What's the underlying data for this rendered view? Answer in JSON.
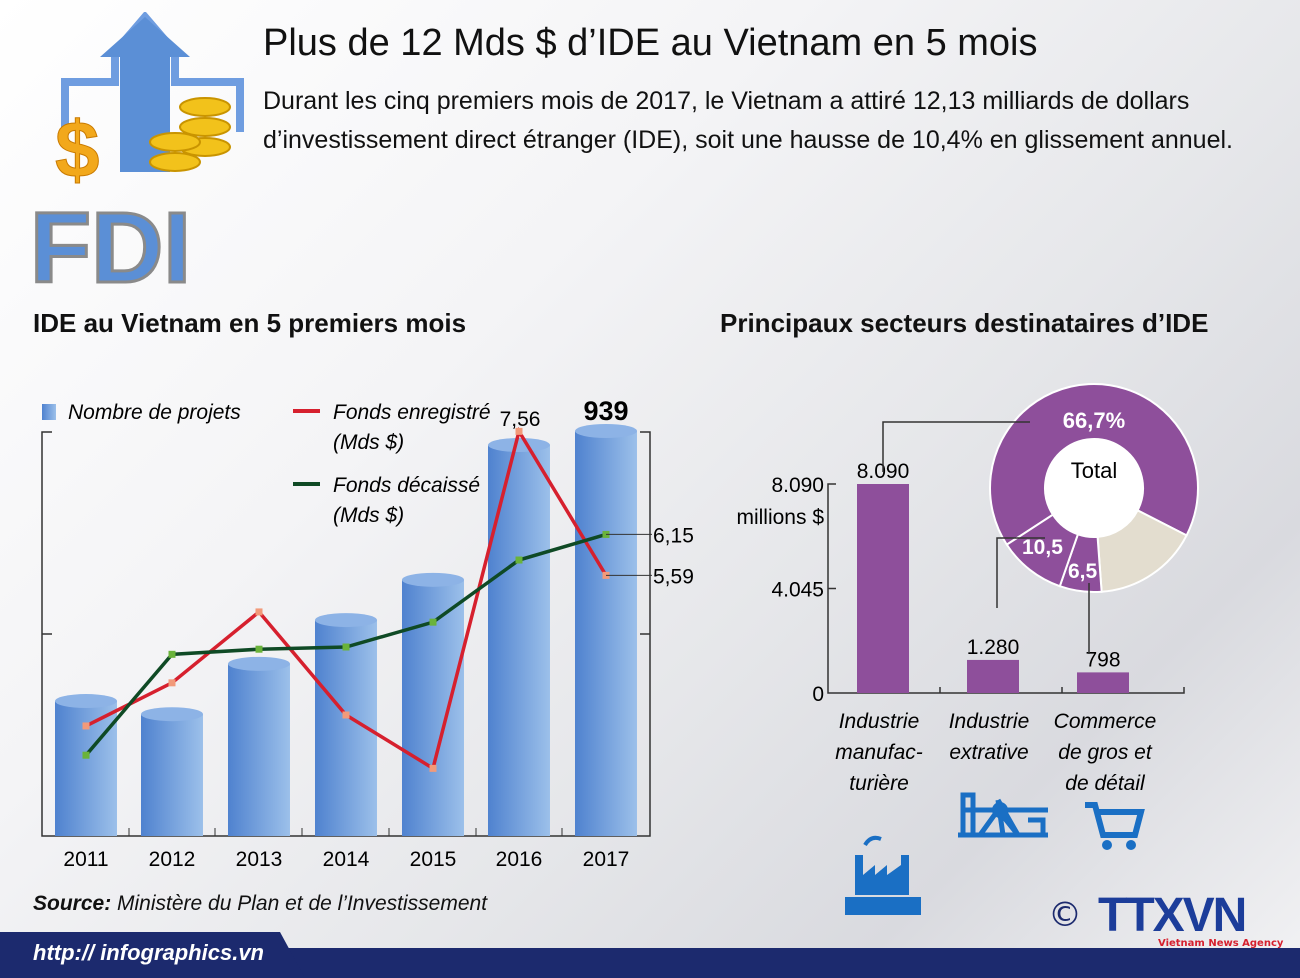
{
  "header": {
    "title": "Plus de 12 Mds $ d’IDE au Vietnam en 5 mois",
    "subtitle": "Durant les cinq premiers mois de 2017, le Vietnam a attiré 12,13 milliards de dollars d’investissement direct étranger (IDE), soit une hausse de 10,4% en glissement annuel.",
    "logo_text": "FDI"
  },
  "colors": {
    "bars_left": "#5b8fd6",
    "red_line": "#d6202e",
    "green_line": "#0f4a25",
    "purple": "#8e4f9b",
    "beige": "#e3ddcf",
    "navy": "#1c2a6e",
    "icon_blue": "#1a6fc4"
  },
  "chart_data": [
    {
      "type": "bar+line",
      "title": "IDE au Vietnam en 5 premiers mois",
      "categories": [
        "2011",
        "2012",
        "2013",
        "2014",
        "2015",
        "2016",
        "2017"
      ],
      "series": [
        {
          "name": "Nombre de projets",
          "kind": "bar",
          "values": [
            322,
            292,
            407,
            507,
            599,
            907,
            939
          ]
        },
        {
          "name": "Fonds enregistré (Mds $)",
          "kind": "line",
          "values": [
            3.53,
            4.12,
            5.09,
            3.68,
            2.95,
            7.56,
            5.59
          ]
        },
        {
          "name": "Fonds décaissé (Mds $)",
          "kind": "line",
          "values": [
            3.13,
            4.51,
            4.58,
            4.61,
            4.95,
            5.8,
            6.15
          ]
        }
      ],
      "data_labels": {
        "bar_2017": "939",
        "red_2016": "7,56",
        "red_2017": "5,59",
        "green_2017": "6,15"
      },
      "legend": {
        "bars": "Nombre de projets",
        "red_line_1": "Fonds enregistré",
        "red_line_2": "(Mds $)",
        "green_line_1": "Fonds décaissé",
        "green_line_2": "(Mds $)",
        "placement": "top"
      }
    },
    {
      "type": "bar",
      "title": "Principaux secteurs destinataires d’IDE",
      "categories": [
        [
          "Industrie",
          "manufac-",
          "turière"
        ],
        [
          "Industrie",
          "extrative"
        ],
        [
          "Commerce",
          "de gros et",
          "de détail"
        ]
      ],
      "values": [
        8090,
        1280,
        798
      ],
      "value_labels": [
        "8.090",
        "1.280",
        "798"
      ],
      "yticks": [
        "0",
        "4.045",
        "8.090"
      ],
      "ytick_values": [
        0,
        4045,
        8090
      ],
      "ylabel": "millions $",
      "ylim": [
        0,
        8090
      ],
      "icons": [
        "factory-icon",
        "oil-pump-icon",
        "shopping-cart-icon"
      ]
    },
    {
      "type": "pie",
      "center_label": "Total",
      "slices": [
        {
          "value": 66.7,
          "label": "66,7%",
          "color": "#8e4f9b"
        },
        {
          "value": 16.3,
          "label": "",
          "color": "#e3ddcf"
        },
        {
          "value": 6.5,
          "label": "6,5",
          "color": "#8e4f9b"
        },
        {
          "value": 10.5,
          "label": "10,5",
          "color": "#8e4f9b"
        }
      ]
    }
  ],
  "footer": {
    "source_label": "Source:",
    "source_text": " Ministère du Plan et de l’Investissement",
    "url": "http:// infographics.vn",
    "copyright": "©",
    "agency": "TTXVN",
    "agency_sub": "Vietnam News Agency"
  }
}
